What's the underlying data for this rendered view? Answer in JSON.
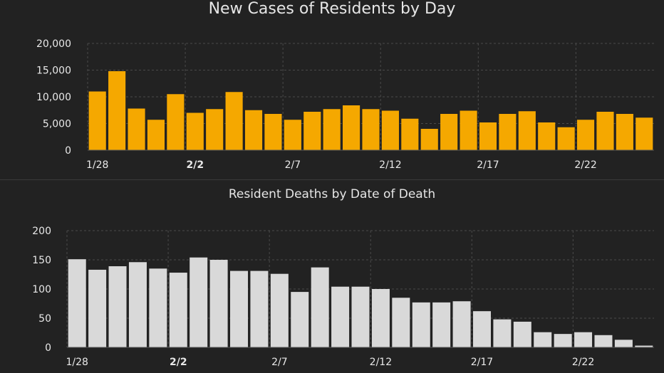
{
  "colors": {
    "background": "#222222",
    "cases_bar": "#f5a800",
    "deaths_bar": "#d9d9d9",
    "grid": "#4a4a4a",
    "text": "#e8e8e8"
  },
  "chart_data": [
    {
      "type": "bar",
      "title": "New Cases of Residents by Day",
      "xlabel": "",
      "ylabel": "",
      "ylim": [
        0,
        20000
      ],
      "yticks": [
        0,
        5000,
        10000,
        15000,
        20000
      ],
      "ytick_labels": [
        "0",
        "5,000",
        "10,000",
        "15,000",
        "20,000"
      ],
      "x_tick_labels": [
        {
          "index": 0,
          "label": "1/28",
          "bold": false
        },
        {
          "index": 5,
          "label": "2/2",
          "bold": true
        },
        {
          "index": 10,
          "label": "2/7",
          "bold": false
        },
        {
          "index": 15,
          "label": "2/12",
          "bold": false
        },
        {
          "index": 20,
          "label": "2/17",
          "bold": false
        },
        {
          "index": 25,
          "label": "2/22",
          "bold": false
        }
      ],
      "grid": true,
      "values": [
        11000,
        14800,
        7800,
        5700,
        10500,
        7000,
        7700,
        10900,
        7500,
        6800,
        5700,
        7200,
        7700,
        8400,
        7700,
        7400,
        5900,
        4000,
        6800,
        7400,
        5200,
        6800,
        7300,
        5200,
        4300,
        5700,
        7200,
        6800,
        6100
      ]
    },
    {
      "type": "bar",
      "title": "Resident Deaths by Date of Death",
      "xlabel": "",
      "ylabel": "",
      "ylim": [
        0,
        200
      ],
      "yticks": [
        0,
        50,
        100,
        150,
        200
      ],
      "ytick_labels": [
        "0",
        "50",
        "100",
        "150",
        "200"
      ],
      "x_tick_labels": [
        {
          "index": 0,
          "label": "1/28",
          "bold": false
        },
        {
          "index": 5,
          "label": "2/2",
          "bold": true
        },
        {
          "index": 10,
          "label": "2/7",
          "bold": false
        },
        {
          "index": 15,
          "label": "2/12",
          "bold": false
        },
        {
          "index": 20,
          "label": "2/17",
          "bold": false
        },
        {
          "index": 25,
          "label": "2/22",
          "bold": false
        }
      ],
      "grid": true,
      "values": [
        151,
        133,
        139,
        146,
        135,
        128,
        154,
        150,
        131,
        131,
        126,
        95,
        137,
        104,
        104,
        100,
        85,
        77,
        77,
        79,
        62,
        48,
        44,
        26,
        23,
        26,
        21,
        13,
        3
      ]
    }
  ]
}
